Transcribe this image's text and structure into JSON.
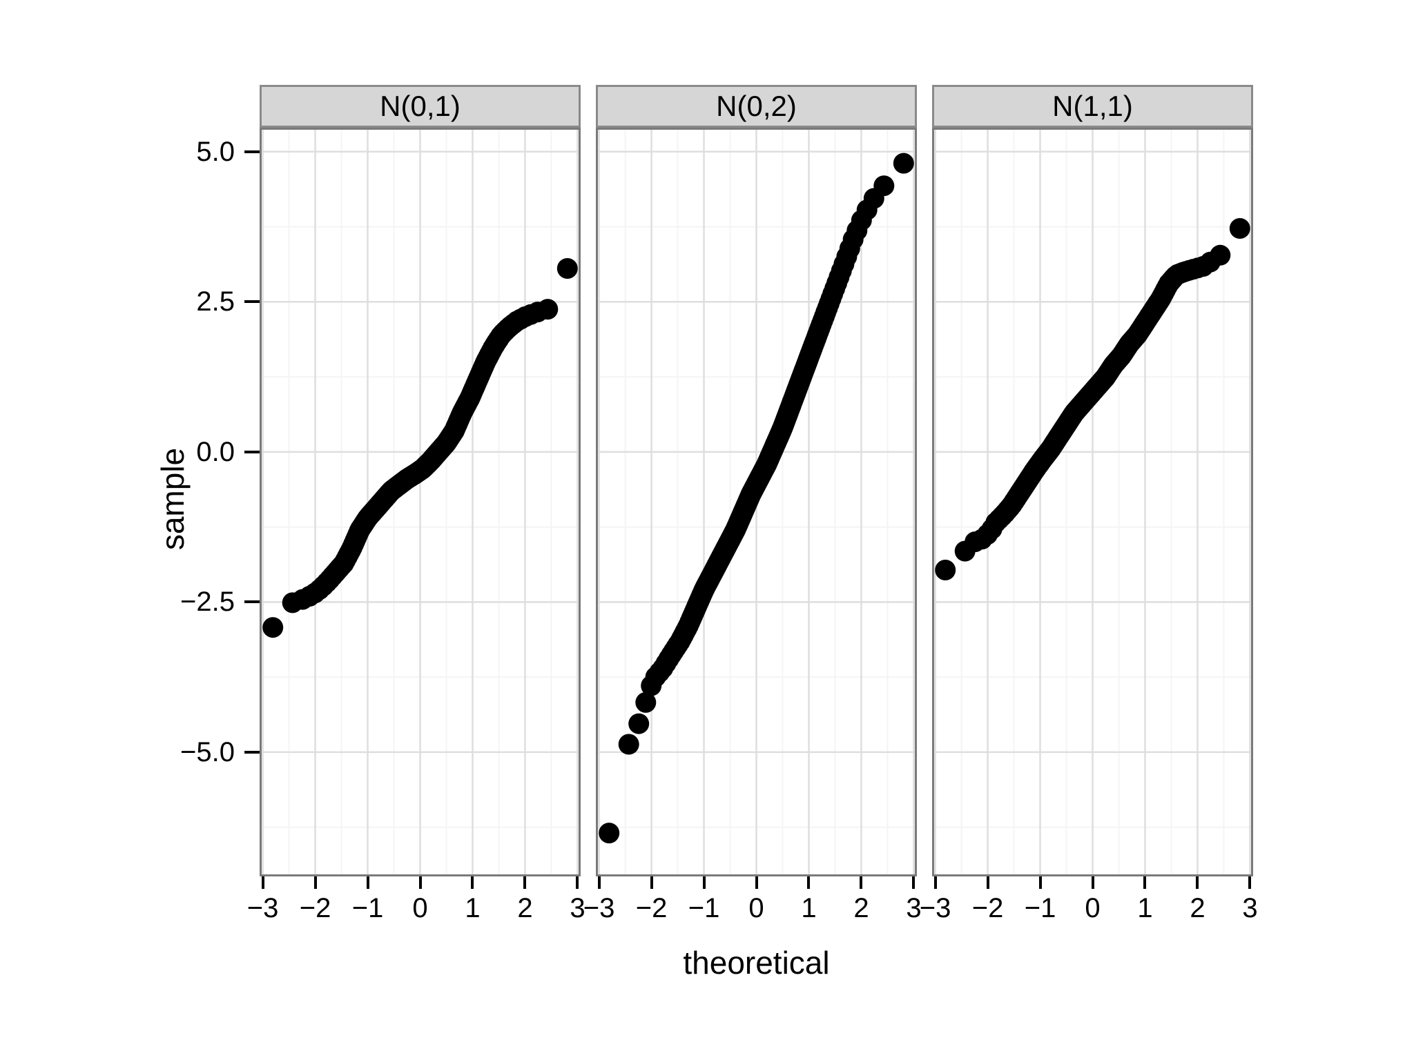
{
  "chart_data": {
    "type": "scatter",
    "subtype": "faceted_qq_plot",
    "title": "",
    "xlabel": "theoretical",
    "ylabel": "sample",
    "legend": "none",
    "grid": true,
    "x_domain": [
      -3.06,
      3.06
    ],
    "y_domain": [
      -7.07,
      5.4
    ],
    "x_ticks": [
      {
        "value": -3,
        "label": "−3"
      },
      {
        "value": -2,
        "label": "−2"
      },
      {
        "value": -1,
        "label": "−1"
      },
      {
        "value": 0,
        "label": "0"
      },
      {
        "value": 1,
        "label": "1"
      },
      {
        "value": 2,
        "label": "2"
      },
      {
        "value": 3,
        "label": "3"
      }
    ],
    "y_ticks": [
      {
        "value": 5.0,
        "label": "5.0"
      },
      {
        "value": 2.5,
        "label": "2.5"
      },
      {
        "value": 0.0,
        "label": "0.0"
      },
      {
        "value": -2.5,
        "label": "−2.5"
      },
      {
        "value": -5.0,
        "label": "−5.0"
      }
    ],
    "gridlines": {
      "major_x": [
        -3,
        -2,
        -1,
        0,
        1,
        2,
        3
      ],
      "minor_x": [
        -2.5,
        -1.5,
        -0.5,
        0.5,
        1.5,
        2.5
      ],
      "major_y": [
        5.0,
        2.5,
        0.0,
        -2.5,
        -5.0
      ],
      "minor_y": [
        3.75,
        1.25,
        -1.25,
        -3.75,
        -6.25
      ],
      "major_color": "#dedede",
      "minor_color": "#f4f4f4"
    },
    "point_color": "#000000",
    "point_radius_px": 15,
    "panel_bg": "#ffffff",
    "panel_border": "#7a7a7a",
    "strip_bg": "#d6d6d6",
    "strip_border": "#8a8a8a",
    "n_points_per_facet": 200,
    "facets": [
      {
        "label": "N(0,1)",
        "extreme_points": [
          [
            -2.83,
            -2.95
          ],
          [
            2.8,
            3.05
          ]
        ],
        "band": [
          [
            -2.9,
            -3.02
          ],
          [
            -2.83,
            -2.95
          ],
          [
            -2.46,
            -2.52
          ],
          [
            -2.25,
            -2.46
          ],
          [
            -2.05,
            -2.38
          ],
          [
            -1.9,
            -2.28
          ],
          [
            -1.75,
            -2.15
          ],
          [
            -1.6,
            -2.0
          ],
          [
            -1.45,
            -1.85
          ],
          [
            -1.3,
            -1.6
          ],
          [
            -1.15,
            -1.3
          ],
          [
            -1.0,
            -1.1
          ],
          [
            -0.85,
            -0.95
          ],
          [
            -0.7,
            -0.8
          ],
          [
            -0.55,
            -0.65
          ],
          [
            -0.4,
            -0.55
          ],
          [
            -0.25,
            -0.45
          ],
          [
            -0.1,
            -0.37
          ],
          [
            0.05,
            -0.28
          ],
          [
            0.2,
            -0.15
          ],
          [
            0.35,
            0.0
          ],
          [
            0.5,
            0.15
          ],
          [
            0.65,
            0.35
          ],
          [
            0.8,
            0.65
          ],
          [
            0.95,
            0.9
          ],
          [
            1.1,
            1.2
          ],
          [
            1.25,
            1.5
          ],
          [
            1.4,
            1.75
          ],
          [
            1.55,
            1.95
          ],
          [
            1.7,
            2.08
          ],
          [
            1.85,
            2.18
          ],
          [
            2.0,
            2.25
          ],
          [
            2.2,
            2.32
          ],
          [
            2.45,
            2.38
          ],
          [
            2.8,
            3.05
          ],
          [
            2.9,
            3.12
          ]
        ]
      },
      {
        "label": "N(0,2)",
        "extreme_points": [
          [
            -2.82,
            -6.4
          ],
          [
            2.82,
            4.82
          ]
        ],
        "band": [
          [
            -2.9,
            -6.55
          ],
          [
            -2.82,
            -6.4
          ],
          [
            -2.45,
            -4.9
          ],
          [
            -2.25,
            -4.55
          ],
          [
            -2.1,
            -4.15
          ],
          [
            -1.97,
            -3.8
          ],
          [
            -1.78,
            -3.6
          ],
          [
            -1.6,
            -3.35
          ],
          [
            -1.45,
            -3.15
          ],
          [
            -1.3,
            -2.9
          ],
          [
            -1.15,
            -2.6
          ],
          [
            -1.0,
            -2.3
          ],
          [
            -0.85,
            -2.05
          ],
          [
            -0.7,
            -1.8
          ],
          [
            -0.55,
            -1.55
          ],
          [
            -0.4,
            -1.3
          ],
          [
            -0.25,
            -1.0
          ],
          [
            -0.1,
            -0.7
          ],
          [
            0.05,
            -0.45
          ],
          [
            0.2,
            -0.2
          ],
          [
            0.35,
            0.1
          ],
          [
            0.5,
            0.4
          ],
          [
            0.65,
            0.75
          ],
          [
            0.8,
            1.1
          ],
          [
            0.95,
            1.45
          ],
          [
            1.1,
            1.8
          ],
          [
            1.25,
            2.15
          ],
          [
            1.4,
            2.5
          ],
          [
            1.55,
            2.85
          ],
          [
            1.7,
            3.2
          ],
          [
            1.85,
            3.55
          ],
          [
            2.0,
            3.85
          ],
          [
            2.15,
            4.1
          ],
          [
            2.3,
            4.3
          ],
          [
            2.45,
            4.45
          ],
          [
            2.82,
            4.82
          ],
          [
            2.9,
            4.86
          ]
        ]
      },
      {
        "label": "N(1,1)",
        "extreme_points": [
          [
            -2.81,
            -1.97
          ],
          [
            2.83,
            3.75
          ]
        ],
        "band": [
          [
            -2.9,
            -2.02
          ],
          [
            -2.81,
            -1.97
          ],
          [
            -2.43,
            -1.65
          ],
          [
            -2.25,
            -1.5
          ],
          [
            -2.1,
            -1.45
          ],
          [
            -1.95,
            -1.33
          ],
          [
            -1.85,
            -1.18
          ],
          [
            -1.7,
            -1.05
          ],
          [
            -1.55,
            -0.9
          ],
          [
            -1.4,
            -0.7
          ],
          [
            -1.25,
            -0.5
          ],
          [
            -1.1,
            -0.3
          ],
          [
            -0.95,
            -0.12
          ],
          [
            -0.8,
            0.05
          ],
          [
            -0.65,
            0.25
          ],
          [
            -0.5,
            0.45
          ],
          [
            -0.35,
            0.65
          ],
          [
            -0.2,
            0.8
          ],
          [
            -0.05,
            0.95
          ],
          [
            0.1,
            1.1
          ],
          [
            0.25,
            1.25
          ],
          [
            0.4,
            1.45
          ],
          [
            0.55,
            1.6
          ],
          [
            0.7,
            1.8
          ],
          [
            0.85,
            1.95
          ],
          [
            1.0,
            2.15
          ],
          [
            1.15,
            2.35
          ],
          [
            1.3,
            2.55
          ],
          [
            1.45,
            2.8
          ],
          [
            1.6,
            2.95
          ],
          [
            1.75,
            3.0
          ],
          [
            1.95,
            3.05
          ],
          [
            2.15,
            3.1
          ],
          [
            2.3,
            3.2
          ],
          [
            2.44,
            3.28
          ],
          [
            2.83,
            3.75
          ],
          [
            2.9,
            3.78
          ]
        ]
      }
    ]
  }
}
